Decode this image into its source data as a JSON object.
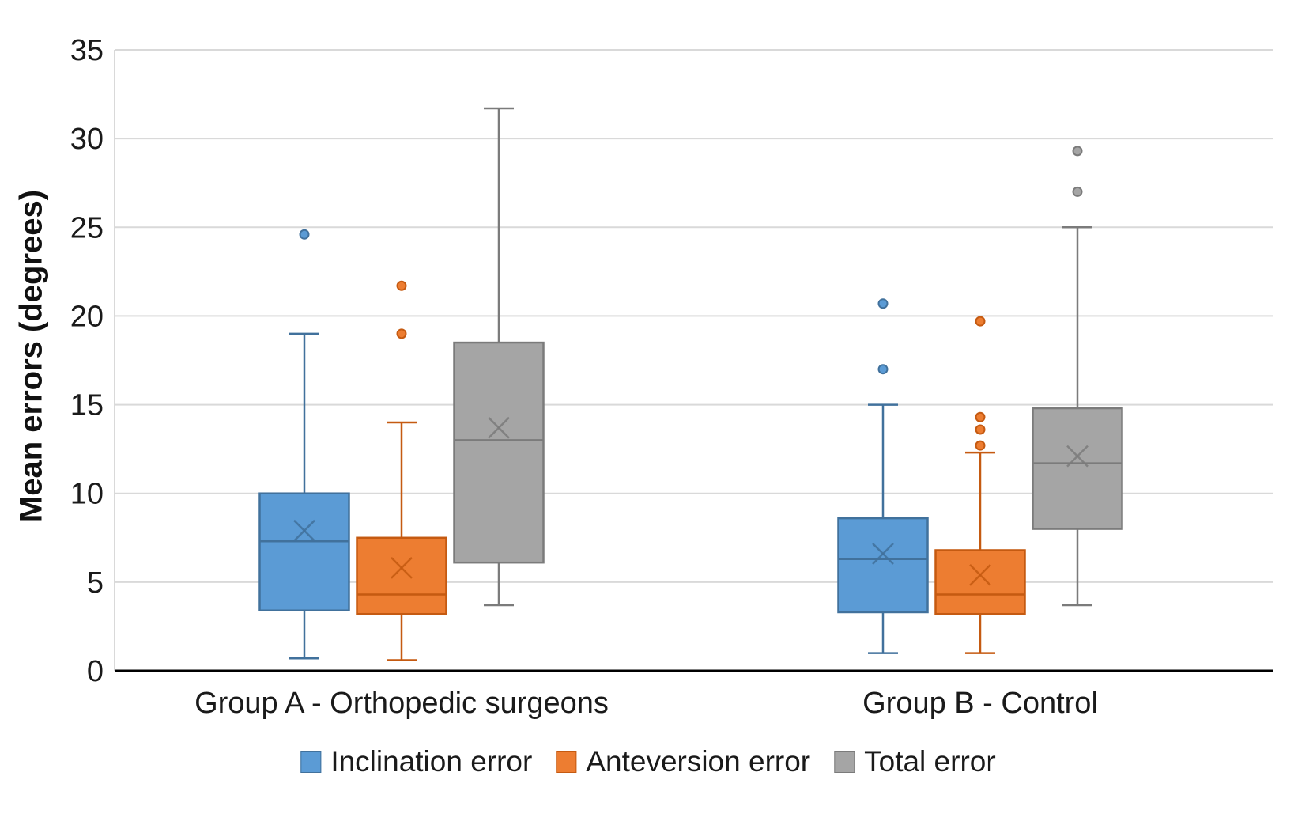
{
  "figure": {
    "background": "#ffffff",
    "grid_color": "#d9d9d9",
    "axis_color": "#000000",
    "text_color": "#1a1a1a"
  },
  "chart_data": {
    "type": "boxplot",
    "title": "",
    "xlabel": "",
    "ylabel": "Mean errors (degrees)",
    "ylim": [
      0,
      35
    ],
    "yticks": [
      0,
      5,
      10,
      15,
      20,
      25,
      30,
      35
    ],
    "grid": true,
    "legend_position": "bottom",
    "categories": [
      "Group A - Orthopedic surgeons",
      "Group B - Control"
    ],
    "series": [
      {
        "name": "Inclination error",
        "color": "#5b9bd5",
        "border_color": "#41719c",
        "boxes": [
          {
            "category": "Group A - Orthopedic surgeons",
            "min": 0.7,
            "q1": 3.4,
            "median": 7.3,
            "q3": 10.0,
            "max": 19.0,
            "mean": 7.9,
            "outliers": [
              24.6
            ]
          },
          {
            "category": "Group B - Control",
            "min": 1.0,
            "q1": 3.3,
            "median": 6.3,
            "q3": 8.6,
            "max": 15.0,
            "mean": 6.6,
            "outliers": [
              17.0,
              20.7
            ]
          }
        ]
      },
      {
        "name": "Anteversion error",
        "color": "#ed7d31",
        "border_color": "#c55a11",
        "boxes": [
          {
            "category": "Group A - Orthopedic surgeons",
            "min": 0.6,
            "q1": 3.2,
            "median": 4.3,
            "q3": 7.5,
            "max": 14.0,
            "mean": 5.8,
            "outliers": [
              19.0,
              21.7
            ]
          },
          {
            "category": "Group B - Control",
            "min": 1.0,
            "q1": 3.2,
            "median": 4.3,
            "q3": 6.8,
            "max": 12.3,
            "mean": 5.4,
            "outliers": [
              12.7,
              13.6,
              14.3,
              19.7
            ]
          }
        ]
      },
      {
        "name": "Total error",
        "color": "#a5a5a5",
        "border_color": "#7b7b7b",
        "boxes": [
          {
            "category": "Group A - Orthopedic surgeons",
            "min": 3.7,
            "q1": 6.1,
            "median": 13.0,
            "q3": 18.5,
            "max": 31.7,
            "mean": 13.7,
            "outliers": []
          },
          {
            "category": "Group B - Control",
            "min": 3.7,
            "q1": 8.0,
            "median": 11.7,
            "q3": 14.8,
            "max": 25.0,
            "mean": 12.1,
            "outliers": [
              27.0,
              29.3
            ]
          }
        ]
      }
    ]
  }
}
